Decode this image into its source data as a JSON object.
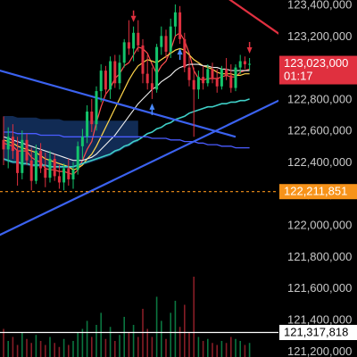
{
  "chart_data": {
    "type": "candlestick",
    "y_axis": {
      "position": "right",
      "range": [
        121230000,
        123620000
      ],
      "ticks": [
        123400000,
        123200000,
        123000000,
        122800000,
        122600000,
        122400000,
        122200000,
        122000000,
        121800000,
        121600000,
        121400000,
        121200000
      ],
      "tick_labels": [
        "123,400,000",
        "123,200,000",
        "123,000,000",
        "122,800,000",
        "122,600,000",
        "122,400,000",
        "122,200,000",
        "122,000,000",
        "121,800,000",
        "121,600,000",
        "121,400,000",
        "121,200,000"
      ]
    },
    "price_labels": [
      {
        "name": "current-price",
        "value": 123023000,
        "text": "123,023,000",
        "subtext": "01:17",
        "color": "#e0303f",
        "line": "none"
      },
      {
        "name": "low-price",
        "value": 122211851,
        "text": "122,211,851",
        "color": "#f7931a",
        "line": "dashed"
      },
      {
        "name": "reference-price",
        "value": 121317818,
        "text": "121,317,818",
        "color": "#ffffff",
        "line": "solid"
      }
    ],
    "candles": [
      [
        122540000,
        122690000,
        122380000,
        122480000
      ],
      [
        122480000,
        122620000,
        122360000,
        122560000
      ],
      [
        122560000,
        122640000,
        122420000,
        122470000
      ],
      [
        122470000,
        122560000,
        122250000,
        122330000
      ],
      [
        122330000,
        122600000,
        122290000,
        122540000
      ],
      [
        122540000,
        122580000,
        122380000,
        122410000
      ],
      [
        122410000,
        122490000,
        122220000,
        122280000
      ],
      [
        122280000,
        122510000,
        122260000,
        122470000
      ],
      [
        122470000,
        122520000,
        122330000,
        122360000
      ],
      [
        122360000,
        122460000,
        122240000,
        122300000
      ],
      [
        122300000,
        122470000,
        122270000,
        122420000
      ],
      [
        122420000,
        122450000,
        122280000,
        122310000
      ],
      [
        122310000,
        122380000,
        122230000,
        122270000
      ],
      [
        122270000,
        122390000,
        122220000,
        122360000
      ],
      [
        122360000,
        122420000,
        122250000,
        122290000
      ],
      [
        122290000,
        122400000,
        122230000,
        122350000
      ],
      [
        122350000,
        122530000,
        122320000,
        122500000
      ],
      [
        122500000,
        122610000,
        122420000,
        122560000
      ],
      [
        122560000,
        122760000,
        122520000,
        122720000
      ],
      [
        122720000,
        122800000,
        122590000,
        122640000
      ],
      [
        122640000,
        122880000,
        122600000,
        122850000
      ],
      [
        122850000,
        123020000,
        122780000,
        122980000
      ],
      [
        122980000,
        123010000,
        122830000,
        122860000
      ],
      [
        122860000,
        123070000,
        122800000,
        123040000
      ],
      [
        123040000,
        123080000,
        122870000,
        122900000
      ],
      [
        122900000,
        123080000,
        122860000,
        123030000
      ],
      [
        123030000,
        123180000,
        123000000,
        123160000
      ],
      [
        123160000,
        123300000,
        123080000,
        123120000
      ],
      [
        123120000,
        123260000,
        123040000,
        123220000
      ],
      [
        123220000,
        123300000,
        123100000,
        123140000
      ],
      [
        123140000,
        123180000,
        122900000,
        122960000
      ],
      [
        122960000,
        123080000,
        122860000,
        122900000
      ],
      [
        122900000,
        123000000,
        122800000,
        122860000
      ],
      [
        122860000,
        123150000,
        122840000,
        123130000
      ],
      [
        123130000,
        123260000,
        123080000,
        123200000
      ],
      [
        123200000,
        123240000,
        123060000,
        123100000
      ],
      [
        123100000,
        123310000,
        123060000,
        123260000
      ],
      [
        123260000,
        123400000,
        123200000,
        123350000
      ],
      [
        123350000,
        123390000,
        123150000,
        123180000
      ],
      [
        123180000,
        123220000,
        122970000,
        123000000
      ],
      [
        123000000,
        123080000,
        122880000,
        122920000
      ],
      [
        122920000,
        123000000,
        122560000,
        122860000
      ],
      [
        122860000,
        122980000,
        122800000,
        122940000
      ],
      [
        122940000,
        123010000,
        122860000,
        122900000
      ],
      [
        122900000,
        123020000,
        122880000,
        122990000
      ],
      [
        122990000,
        123030000,
        122900000,
        122930000
      ],
      [
        122930000,
        122990000,
        122840000,
        122880000
      ],
      [
        122880000,
        123010000,
        122860000,
        122990000
      ],
      [
        122990000,
        123060000,
        122920000,
        122950000
      ],
      [
        122950000,
        123020000,
        122840000,
        122870000
      ],
      [
        122870000,
        123020000,
        122850000,
        123000000
      ],
      [
        123000000,
        123080000,
        122960000,
        123040000
      ],
      [
        123040000,
        123070000,
        122990000,
        123020000
      ],
      [
        123020000,
        123060000,
        122980000,
        123023000
      ]
    ],
    "volume": [
      14,
      8,
      10,
      6,
      12,
      9,
      7,
      11,
      8,
      6,
      10,
      7,
      5,
      9,
      6,
      8,
      12,
      14,
      18,
      10,
      16,
      22,
      9,
      15,
      8,
      11,
      20,
      12,
      16,
      10,
      24,
      14,
      10,
      30,
      18,
      9,
      22,
      28,
      15,
      26,
      12,
      40,
      10,
      8,
      9,
      7,
      6,
      8,
      7,
      10,
      9,
      8,
      6,
      7
    ],
    "moving_averages": [
      {
        "name": "ma-5",
        "color": "#ff4d4d",
        "width": 1.2,
        "values": [
          122520000,
          122510000,
          122500000,
          122470000,
          122470000,
          122470000,
          122430000,
          122410000,
          122400000,
          122360000,
          122350000,
          122350000,
          122340000,
          122340000,
          122330000,
          122320000,
          122350000,
          122410000,
          122480000,
          122530000,
          122650000,
          122750000,
          122830000,
          122870000,
          122930000,
          122960000,
          123010000,
          123030000,
          123080000,
          123130000,
          123120000,
          123090000,
          123020000,
          122960000,
          123010000,
          123040000,
          123110000,
          123200000,
          123220000,
          123170000,
          123090000,
          122980000,
          122930000,
          122920000,
          122930000,
          122930000,
          122930000,
          122940000,
          122950000,
          122940000,
          122940000,
          122970000,
          122980000,
          122990000
        ]
      },
      {
        "name": "ma-10",
        "color": "#ffd54a",
        "width": 1.2,
        "values": [
          122540000,
          122530000,
          122520000,
          122500000,
          122490000,
          122480000,
          122470000,
          122460000,
          122440000,
          122420000,
          122410000,
          122400000,
          122390000,
          122380000,
          122370000,
          122350000,
          122360000,
          122380000,
          122420000,
          122450000,
          122500000,
          122560000,
          122620000,
          122680000,
          122740000,
          122800000,
          122860000,
          122920000,
          122970000,
          123010000,
          123030000,
          123050000,
          123040000,
          123030000,
          123050000,
          123070000,
          123090000,
          123110000,
          123120000,
          123110000,
          123080000,
          123050000,
          123030000,
          123010000,
          123000000,
          122990000,
          122970000,
          122960000,
          122960000,
          122960000,
          122950000,
          122950000,
          122960000,
          122960000
        ]
      },
      {
        "name": "ma-20",
        "color": "#f0f0f0",
        "width": 1.1,
        "values": [
          122560000,
          122550000,
          122540000,
          122530000,
          122520000,
          122510000,
          122500000,
          122490000,
          122480000,
          122470000,
          122460000,
          122450000,
          122440000,
          122430000,
          122420000,
          122410000,
          122410000,
          122410000,
          122420000,
          122430000,
          122450000,
          122480000,
          122510000,
          122540000,
          122570000,
          122610000,
          122650000,
          122690000,
          122730000,
          122770000,
          122800000,
          122830000,
          122860000,
          122880000,
          122910000,
          122930000,
          122950000,
          122980000,
          123000000,
          123010000,
          123020000,
          123020000,
          123020000,
          123010000,
          123010000,
          123000000,
          123000000,
          122990000,
          122990000,
          122980000,
          122980000,
          122980000,
          122980000,
          122980000
        ]
      },
      {
        "name": "ma-50",
        "color": "#3fd0c8",
        "width": 1.6,
        "values": [
          122420000,
          122410000,
          122400000,
          122400000,
          122390000,
          122390000,
          122380000,
          122380000,
          122380000,
          122380000,
          122370000,
          122370000,
          122370000,
          122370000,
          122370000,
          122370000,
          122380000,
          122390000,
          122400000,
          122410000,
          122420000,
          122430000,
          122440000,
          122450000,
          122470000,
          122480000,
          122500000,
          122510000,
          122530000,
          122540000,
          122560000,
          122580000,
          122590000,
          122610000,
          122620000,
          122640000,
          122650000,
          122670000,
          122680000,
          122690000,
          122710000,
          122720000,
          122730000,
          122740000,
          122750000,
          122750000,
          122760000,
          122770000,
          122770000,
          122780000,
          122780000,
          122790000,
          122790000,
          122800000
        ]
      },
      {
        "name": "ma-100",
        "color": "#4a5cff",
        "width": 1.3,
        "values": [
          122590000,
          122590000,
          122590000,
          122580000,
          122580000,
          122580000,
          122580000,
          122580000,
          122570000,
          122570000,
          122570000,
          122570000,
          122570000,
          122560000,
          122560000,
          122560000,
          122560000,
          122560000,
          122560000,
          122560000,
          122560000,
          122560000,
          122560000,
          122560000,
          122560000,
          122560000,
          122560000,
          122560000,
          122560000,
          122560000,
          122560000,
          122560000,
          122550000,
          122550000,
          122550000,
          122550000,
          122540000,
          122540000,
          122540000,
          122530000,
          122530000,
          122530000,
          122520000,
          122520000,
          122510000,
          122510000,
          122510000,
          122500000,
          122500000,
          122500000,
          122490000,
          122490000,
          122490000,
          122490000
        ]
      }
    ],
    "trendlines": [
      {
        "name": "descending-blue-trendline",
        "color": "#3b62f0",
        "p1": [
          -2,
          122990000
        ],
        "p2": [
          50,
          122560000
        ]
      },
      {
        "name": "ascending-blue-trendline",
        "color": "#3b62f0",
        "p1": [
          -2,
          121920000
        ],
        "p2": [
          60,
          122800000
        ]
      },
      {
        "name": "descending-red-trendline",
        "color": "#e03040",
        "p1": [
          40,
          123610000
        ],
        "p2": [
          60,
          123200000
        ]
      }
    ],
    "signal_markers": [
      {
        "name": "sell-arrow",
        "index": 28,
        "direction": "down",
        "color": "#e0303f"
      },
      {
        "name": "buy-arrow",
        "index": 32,
        "direction": "up",
        "color": "#4a8cff"
      },
      {
        "name": "buy-arrow",
        "index": 38,
        "direction": "up",
        "color": "#4a8cff"
      },
      {
        "name": "sell-arrow",
        "index": 53,
        "direction": "down",
        "color": "#e0303f"
      }
    ],
    "colors": {
      "up": "#13c46b",
      "down": "#e0303f",
      "cloud": "#1f4f99"
    }
  }
}
